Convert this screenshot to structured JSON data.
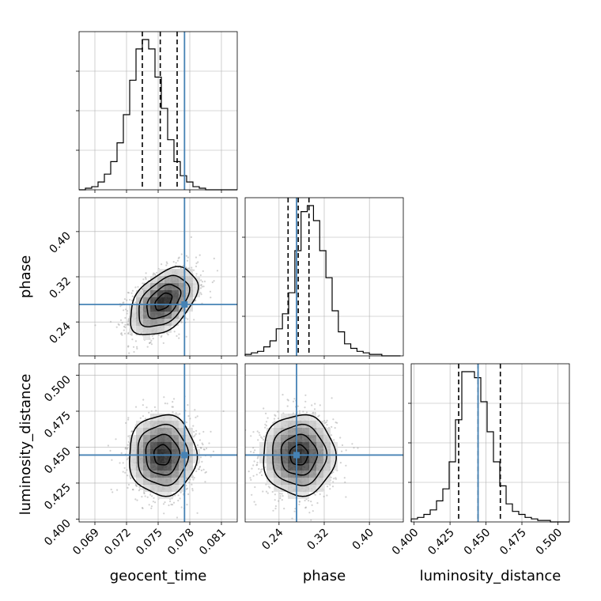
{
  "chart_data": {
    "type": "corner",
    "parameters": [
      {
        "label": "geocent_time",
        "range": [
          0.0675,
          0.0825
        ],
        "ticks": [
          "0.069",
          "0.072",
          "0.075",
          "0.078",
          "0.081"
        ],
        "tick_values": [
          0.069,
          0.072,
          0.075,
          0.078,
          0.081
        ],
        "quantiles": [
          0.0735,
          0.0752,
          0.0768
        ],
        "truth": 0.0775
      },
      {
        "label": "phase",
        "range": [
          0.18,
          0.46
        ],
        "ticks": [
          "0.24",
          "0.32",
          "0.40"
        ],
        "tick_values": [
          0.24,
          0.32,
          0.4
        ],
        "quantiles": [
          0.256,
          0.274,
          0.293
        ],
        "truth": 0.271
      },
      {
        "label": "luminosity_distance",
        "range": [
          0.398,
          0.508
        ],
        "ticks": [
          "0.400",
          "0.425",
          "0.450",
          "0.475",
          "0.500"
        ],
        "tick_values": [
          0.4,
          0.425,
          0.45,
          0.475,
          0.5
        ],
        "quantiles": [
          0.431,
          0.4445,
          0.46
        ],
        "truth": 0.4445
      }
    ],
    "histograms": [
      {
        "param": 0,
        "edges_start": 0.0675,
        "bin_width": 0.0006,
        "counts": [
          0,
          1,
          2,
          5,
          10,
          18,
          30,
          48,
          70,
          90,
          96,
          90,
          72,
          52,
          32,
          18,
          9,
          5,
          2,
          1,
          0,
          0,
          0,
          0,
          0
        ]
      },
      {
        "param": 1,
        "edges_start": 0.18,
        "bin_width": 0.011,
        "counts": [
          1,
          2,
          3,
          6,
          10,
          18,
          28,
          42,
          70,
          96,
          100,
          90,
          70,
          52,
          30,
          16,
          8,
          5,
          3,
          2,
          1,
          1,
          0,
          0,
          0
        ]
      },
      {
        "param": 2,
        "edges_start": 0.398,
        "bin_width": 0.0044,
        "counts": [
          2,
          3,
          5,
          8,
          14,
          22,
          40,
          68,
          100,
          100,
          96,
          80,
          60,
          40,
          24,
          12,
          7,
          5,
          3,
          2,
          1,
          1,
          0,
          0,
          0
        ]
      }
    ],
    "scatter_panels": [
      {
        "x": 0,
        "y": 1,
        "center": [
          0.0755,
          0.276
        ],
        "sigma": [
          0.0016,
          0.03
        ],
        "rho": 0.45
      },
      {
        "x": 0,
        "y": 2,
        "center": [
          0.0754,
          0.4445
        ],
        "sigma": [
          0.0016,
          0.014
        ],
        "rho": 0.0
      },
      {
        "x": 1,
        "y": 2,
        "center": [
          0.275,
          0.4445
        ],
        "sigma": [
          0.032,
          0.014
        ],
        "rho": 0.0
      }
    ],
    "colors": {
      "truth": "#4682b4",
      "hist": "#000000",
      "quantile": "#000000",
      "grid": "#b0b0b0",
      "scatter": "#9a9a9a"
    },
    "grid": true
  }
}
